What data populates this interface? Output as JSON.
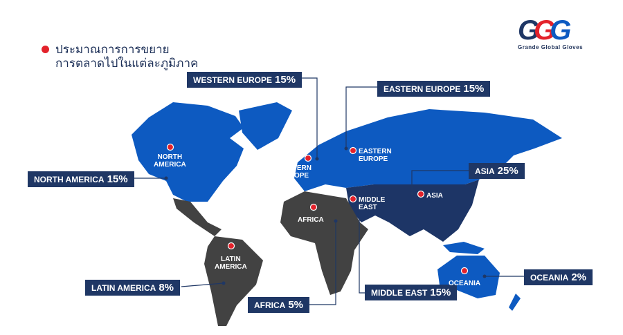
{
  "title": {
    "line1": "ประมาณการการขยาย",
    "line2": "การตลาดไปในแต่ละภูมิภาค"
  },
  "logo": {
    "mark": "GGG",
    "name": "Grande Global Gloves"
  },
  "colors": {
    "blue": "#0d5ac1",
    "navy": "#1d3566",
    "gray": "#424242",
    "label_box": "#1f3765",
    "pin": "#e3222b"
  },
  "regions": [
    {
      "key": "western_europe",
      "box_label": "WESTERN EUROPE",
      "percent": "15%",
      "map_label": [
        "WESTERN",
        "EUROPE"
      ]
    },
    {
      "key": "eastern_europe",
      "box_label": "EASTERN EUROPE",
      "percent": "15%",
      "map_label": [
        "EASTERN",
        "EUROPE"
      ]
    },
    {
      "key": "north_america",
      "box_label": "NORTH AMERICA",
      "percent": "15%",
      "map_label": [
        "NORTH",
        "AMERICA"
      ]
    },
    {
      "key": "asia",
      "box_label": "ASIA",
      "percent": "25%",
      "map_label": [
        "ASIA",
        ""
      ]
    },
    {
      "key": "oceania",
      "box_label": "OCEANIA",
      "percent": "2%",
      "map_label": [
        "OCEANIA",
        ""
      ]
    },
    {
      "key": "middle_east",
      "box_label": "MIDDLE EAST",
      "percent": "15%",
      "map_label": [
        "MIDDLE",
        "EAST"
      ]
    },
    {
      "key": "africa",
      "box_label": "AFRICA",
      "percent": "5%",
      "map_label": [
        "AFRICA",
        ""
      ]
    },
    {
      "key": "latin_america",
      "box_label": "LATIN AMERICA",
      "percent": "8%",
      "map_label": [
        "LATIN",
        "AMERICA"
      ]
    }
  ]
}
